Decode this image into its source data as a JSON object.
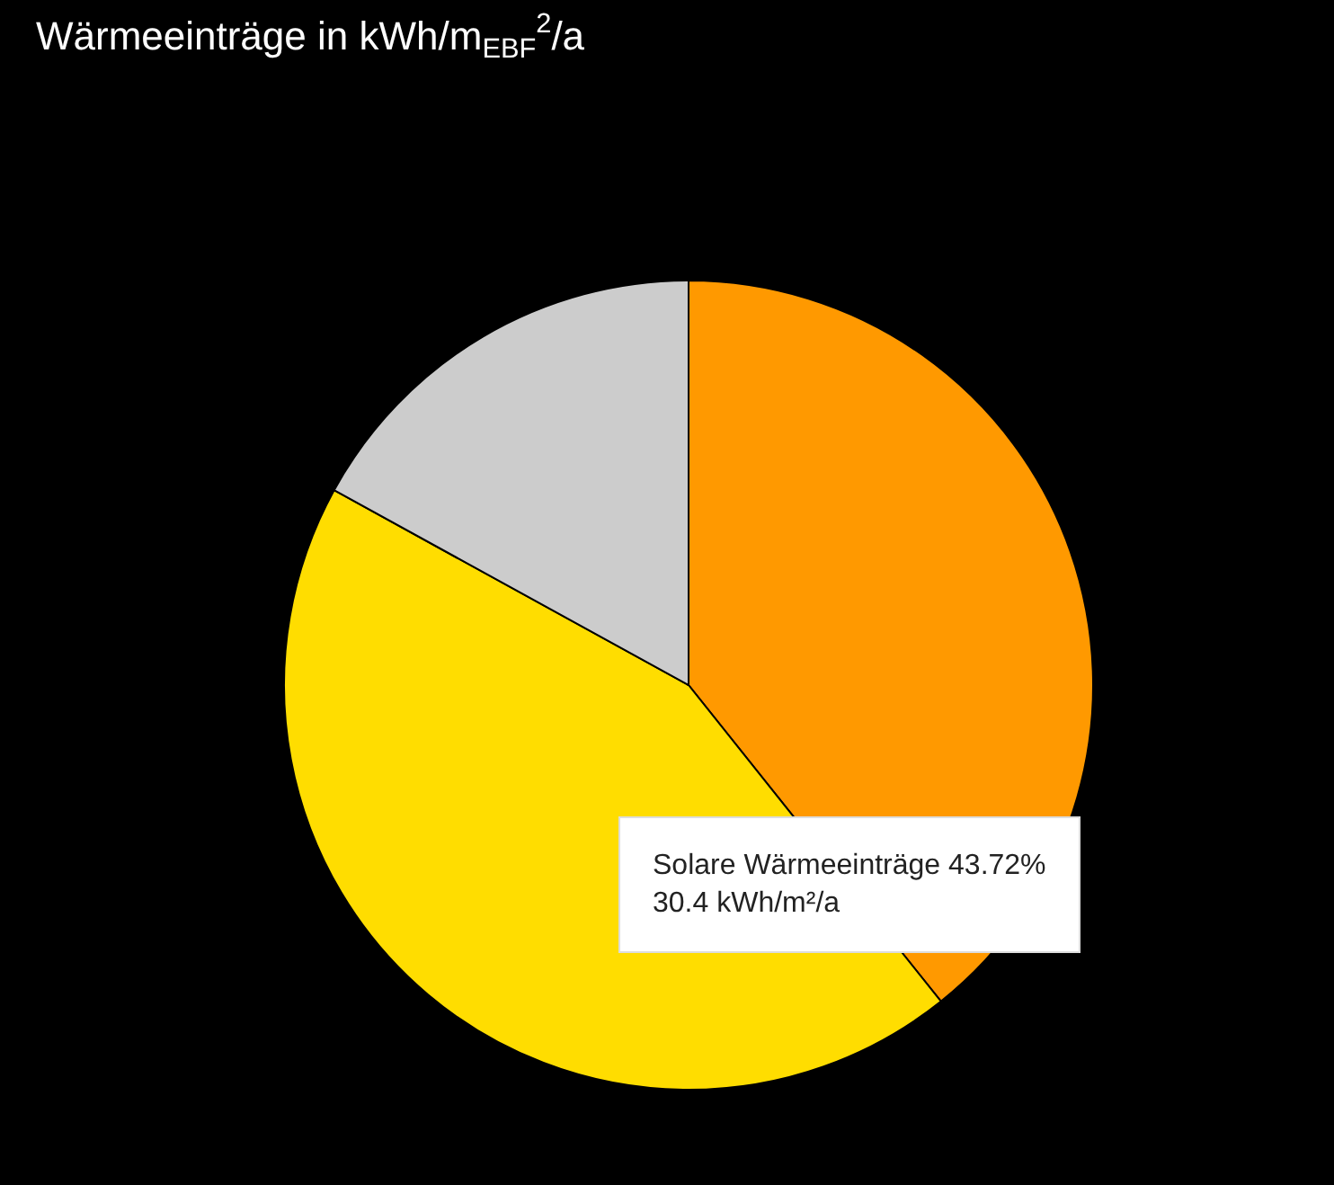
{
  "chart_data": {
    "type": "pie",
    "title": "Wärmeeinträge in kWh/m$_{EBF}$$^{2}$/a",
    "categories": [
      null,
      null,
      null
    ],
    "values": [
      39.28,
      43.72,
      17.0
    ],
    "colors": [
      "#ff9900",
      "#ffdd00",
      "#cccccc"
    ],
    "legend": false,
    "annotations": [
      "Solare Wärmeeinträge 43.72%\n30.4 kWh/m²/a"
    ]
  }
}
